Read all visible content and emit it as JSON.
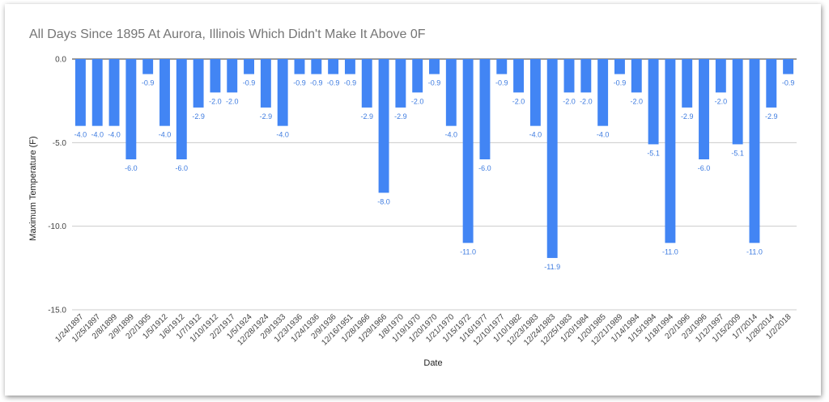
{
  "chart_data": {
    "type": "bar",
    "title": "All Days Since 1895 At Aurora, Illinois Which Didn't Make It Above 0F",
    "xlabel": "Date",
    "ylabel": "Maximum Temperature (F)",
    "ylim": [
      -15,
      0
    ],
    "yticks": [
      0,
      -5,
      -10,
      -15
    ],
    "ytick_labels": [
      "0.0",
      "-5.0",
      "-10.0",
      "-15.0"
    ],
    "grid": true,
    "bar_color": "#4285f4",
    "label_color": "#3d7be0",
    "categories": [
      "1/24/1897",
      "1/25/1897",
      "2/8/1899",
      "2/9/1899",
      "2/2/1905",
      "1/5/1912",
      "1/6/1912",
      "1/7/1912",
      "1/10/1912",
      "2/2/1917",
      "1/5/1924",
      "12/28/1924",
      "2/9/1933",
      "1/23/1936",
      "1/24/1936",
      "2/9/1936",
      "12/16/1951",
      "1/28/1966",
      "1/29/1966",
      "1/8/1970",
      "1/19/1970",
      "1/20/1970",
      "1/21/1970",
      "1/15/1972",
      "1/16/1977",
      "12/10/1977",
      "1/10/1982",
      "12/23/1983",
      "12/24/1983",
      "12/25/1983",
      "1/20/1984",
      "1/20/1985",
      "12/21/1989",
      "1/14/1994",
      "1/15/1994",
      "1/18/1994",
      "2/2/1996",
      "2/3/1996",
      "1/12/1997",
      "1/15/2009",
      "1/7/2014",
      "1/28/2014",
      "1/2/2018"
    ],
    "values": [
      -4.0,
      -4.0,
      -4.0,
      -6.0,
      -0.9,
      -4.0,
      -6.0,
      -2.9,
      -2.0,
      -2.0,
      -0.9,
      -2.9,
      -4.0,
      -0.9,
      -0.9,
      -0.9,
      -0.9,
      -2.9,
      -8.0,
      -2.9,
      -2.0,
      -0.9,
      -4.0,
      -11.0,
      -6.0,
      -0.9,
      -2.0,
      -4.0,
      -11.9,
      -2.0,
      -2.0,
      -4.0,
      -0.9,
      -2.0,
      -5.1,
      -11.0,
      -2.9,
      -6.0,
      -2.0,
      -5.1,
      -11.0,
      -2.9,
      -0.9
    ],
    "value_labels": [
      "-4.0",
      "-4.0",
      "-4.0",
      "-6.0",
      "-0.9",
      "-4.0",
      "-6.0",
      "-2.9",
      "-2.0",
      "-2.0",
      "-0.9",
      "-2.9",
      "-4.0",
      "-0.9",
      "-0.9",
      "-0.9",
      "-0.9",
      "-2.9",
      "-8.0",
      "-2.9",
      "-2.0",
      "-0.9",
      "-4.0",
      "-11.0",
      "-6.0",
      "-0.9",
      "-2.0",
      "-4.0",
      "-11.9",
      "-2.0",
      "-2.0",
      "-4.0",
      "-0.9",
      "-2.0",
      "-5.1",
      "-11.0",
      "-2.9",
      "-6.0",
      "-2.0",
      "-5.1",
      "-11.0",
      "-2.9",
      "-0.9"
    ]
  }
}
